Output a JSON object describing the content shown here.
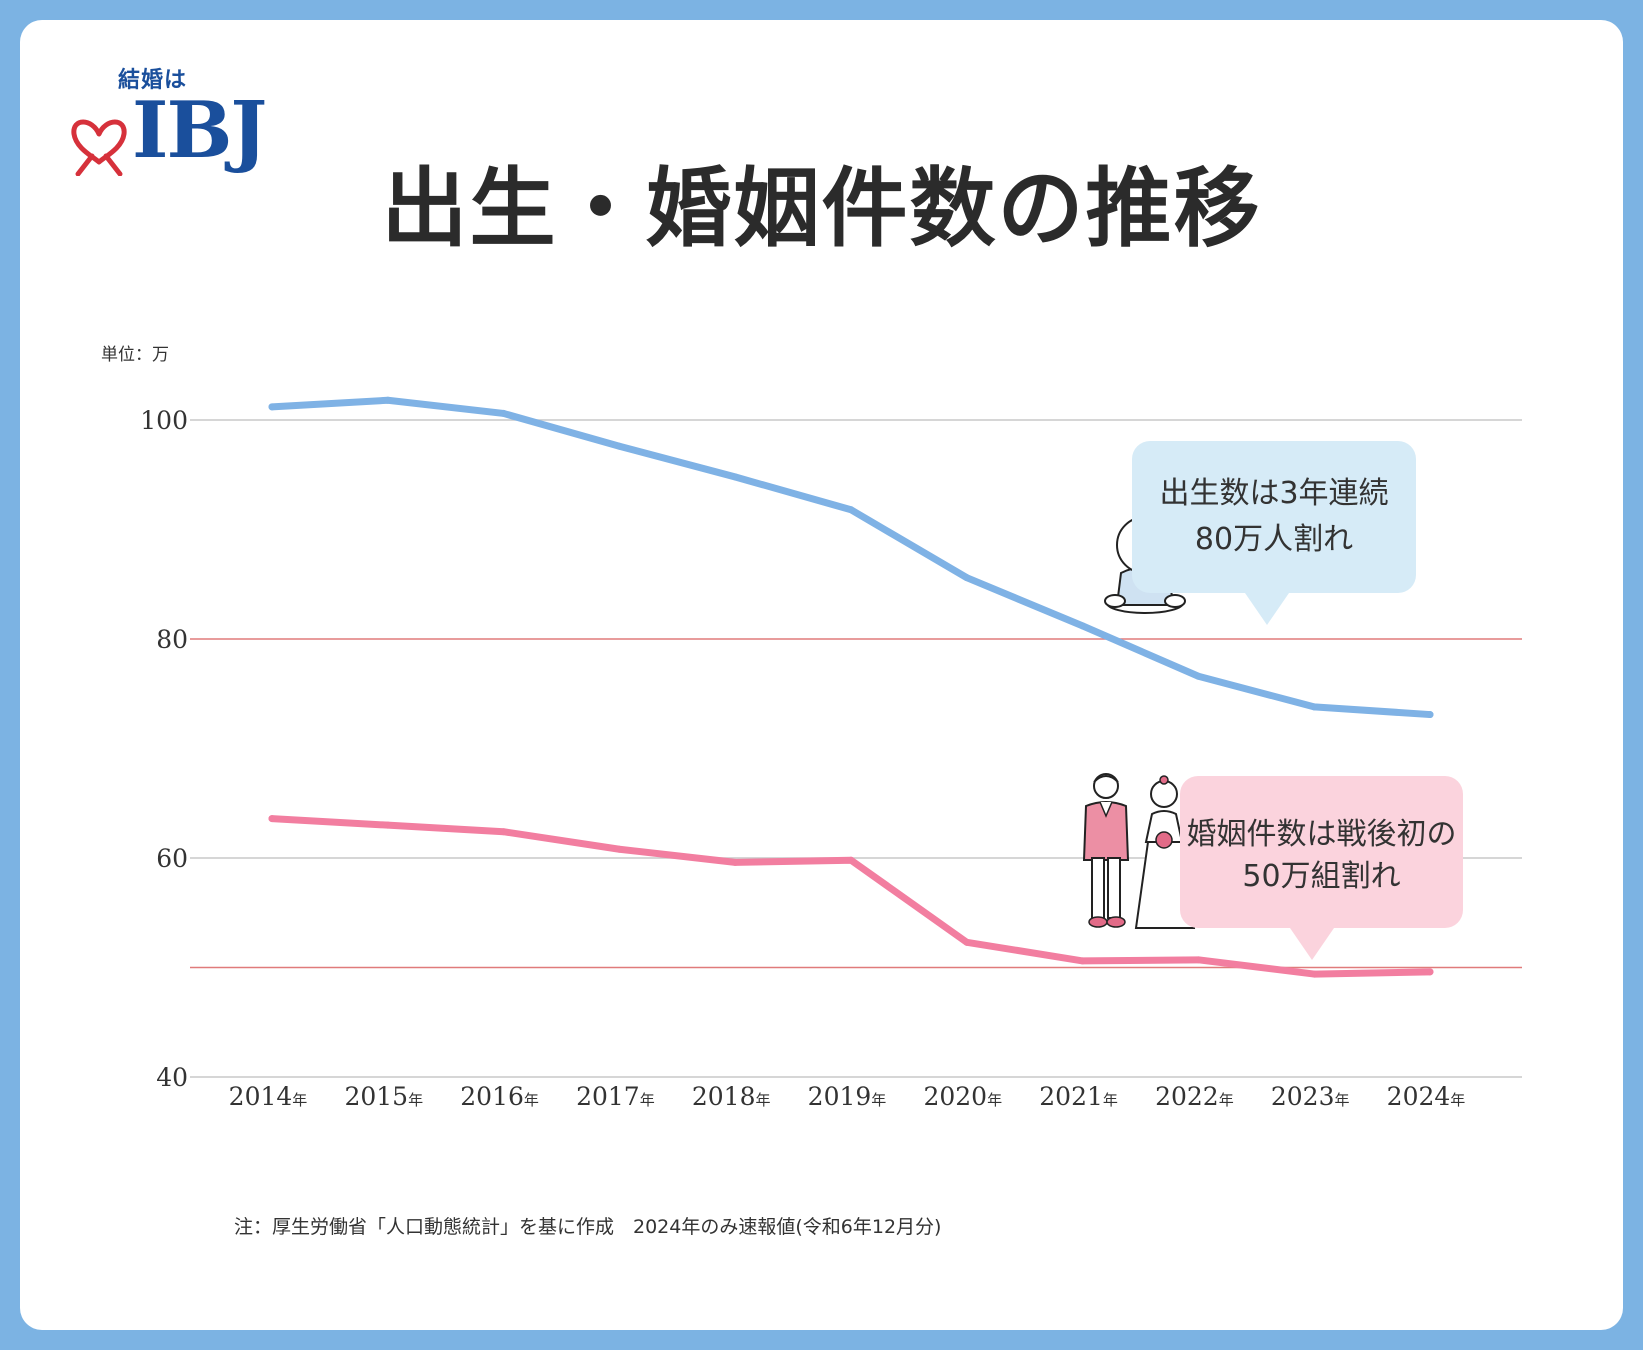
{
  "logo": {
    "tagline": "結婚は",
    "brand": "IBJ"
  },
  "title": "出生・婚姻件数の推移",
  "unit_label": "単位：万",
  "annotations": {
    "births": [
      "出生数は3年連続",
      "80万人割れ"
    ],
    "marriages": [
      "婚姻件数は戦後初の",
      "50万組割れ"
    ]
  },
  "footnote": "注：厚生労働省「人口動態統計」を基に作成　2024年のみ速報値(令和6年12月分)",
  "colors": {
    "background": "#7cb3e3",
    "births_line": "#7fb2e5",
    "marriages_line": "#f27ea0",
    "grid": "#c8c8c8",
    "highlight_grid": "#e07b7b",
    "bubble_blue": "#d6ebf7",
    "bubble_pink": "#fbd3dd"
  },
  "icons": {
    "baby": "baby-illustration",
    "couple": "bride-groom-illustration"
  },
  "chart_data": {
    "type": "line",
    "title": "出生・婚姻件数の推移",
    "ylabel": "単位：万",
    "xlabel": "",
    "ylim": [
      40,
      100
    ],
    "yticks": [
      40,
      60,
      80,
      100
    ],
    "highlight_lines": [
      80,
      50
    ],
    "year_suffix": "年",
    "categories": [
      "2014",
      "2015",
      "2016",
      "2017",
      "2018",
      "2019",
      "2020",
      "2021",
      "2022",
      "2023",
      "2024"
    ],
    "series": [
      {
        "name": "出生数",
        "values": [
          101.2,
          101.8,
          100.6,
          97.6,
          94.8,
          91.8,
          85.6,
          81.2,
          76.6,
          73.8,
          73.1
        ]
      },
      {
        "name": "婚姻件数",
        "values": [
          63.6,
          63.0,
          62.4,
          60.8,
          59.6,
          59.8,
          52.3,
          50.6,
          50.7,
          49.4,
          49.6
        ]
      }
    ],
    "grid": true
  }
}
